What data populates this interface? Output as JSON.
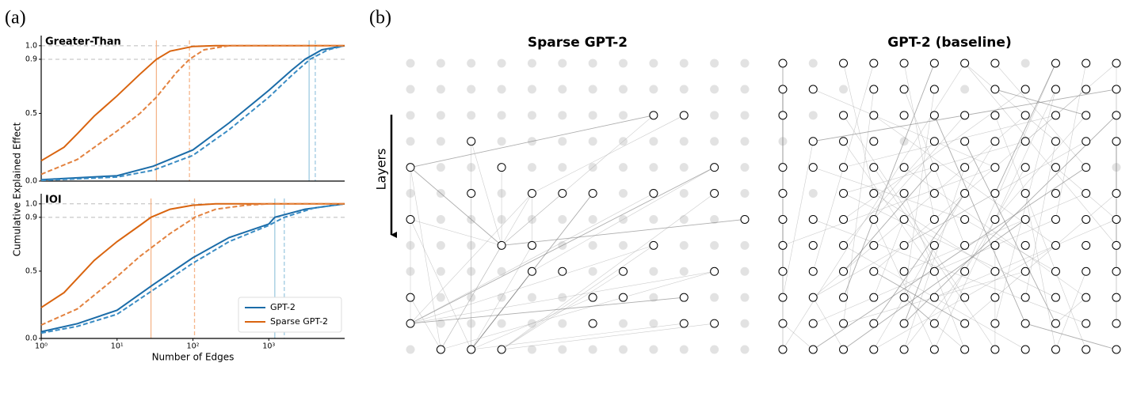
{
  "panel_labels": [
    "(a)",
    "(b)"
  ],
  "chart_data": [
    {
      "type": "line",
      "title": "Greater-Than",
      "xscale": "log",
      "xlim": [
        1,
        10000
      ],
      "ylim": [
        0,
        1.04
      ],
      "yticks": [
        {
          "value": 0,
          "label": "0.0"
        },
        0.5,
        0.9,
        {
          "value": 1,
          "label": "1.0"
        }
      ],
      "reference_lines": [
        0.9,
        1
      ],
      "vlines": [
        {
          "x": 33,
          "color": "#f5b58a",
          "style": "solid"
        },
        {
          "x": 90,
          "color": "#f5b58a",
          "style": "dashed"
        },
        {
          "x": 3400,
          "color": "#9ecae1",
          "style": "solid"
        },
        {
          "x": 4100,
          "color": "#9ecae1",
          "style": "dashed"
        }
      ],
      "series": [
        {
          "color": "#1b6ca8",
          "style": "solid",
          "x": [
            1,
            10,
            30,
            100,
            300,
            1000,
            2000,
            3000,
            5000,
            10000
          ],
          "values": [
            0.01,
            0.04,
            0.11,
            0.23,
            0.43,
            0.67,
            0.82,
            0.9,
            0.97,
            1
          ]
        },
        {
          "color": "#3a8cc4",
          "style": "dashed",
          "x": [
            1,
            10,
            30,
            100,
            300,
            1000,
            2000,
            3500,
            6000,
            10000
          ],
          "values": [
            0.005,
            0.03,
            0.08,
            0.19,
            0.38,
            0.62,
            0.78,
            0.9,
            0.97,
            1
          ]
        },
        {
          "color": "#d9640f",
          "style": "solid",
          "x": [
            1,
            2,
            3,
            5,
            10,
            20,
            33,
            50,
            100,
            200,
            10000
          ],
          "values": [
            0.15,
            0.25,
            0.35,
            0.48,
            0.63,
            0.79,
            0.9,
            0.96,
            0.995,
            1,
            1
          ]
        },
        {
          "color": "#e3823f",
          "style": "dashed",
          "x": [
            1,
            3,
            10,
            20,
            33,
            60,
            90,
            140,
            300,
            10000
          ],
          "values": [
            0.05,
            0.16,
            0.37,
            0.5,
            0.62,
            0.8,
            0.9,
            0.97,
            1,
            1
          ]
        }
      ]
    },
    {
      "type": "line",
      "title": "IOI",
      "xscale": "log",
      "xlim": [
        1,
        10000
      ],
      "ylim": [
        0,
        1.04
      ],
      "xlabel": "Number of Edges",
      "ylabel": "Cumulative Explained Effect",
      "xticks": [
        {
          "value": 1,
          "label": "10⁰"
        },
        {
          "value": 10,
          "label": "10¹"
        },
        {
          "value": 100,
          "label": "10²"
        },
        {
          "value": 1000,
          "label": "10³"
        }
      ],
      "yticks": [
        {
          "value": 0,
          "label": "0.0"
        },
        0.5,
        0.9,
        {
          "value": 1,
          "label": "1.0"
        }
      ],
      "reference_lines": [
        0.9,
        1
      ],
      "legend": "lower right",
      "vlines": [
        {
          "x": 28,
          "color": "#f5b58a",
          "style": "solid"
        },
        {
          "x": 105,
          "color": "#f5b58a",
          "style": "dashed"
        },
        {
          "x": 1200,
          "color": "#9ecae1",
          "style": "solid"
        },
        {
          "x": 1600,
          "color": "#9ecae1",
          "style": "dashed"
        }
      ],
      "series": [
        {
          "name": "GPT-2",
          "color": "#1b6ca8",
          "style": "solid",
          "x": [
            1,
            3,
            10,
            30,
            100,
            300,
            1000,
            1200,
            3000,
            10000
          ],
          "values": [
            0.05,
            0.11,
            0.21,
            0.4,
            0.6,
            0.75,
            0.85,
            0.9,
            0.96,
            1
          ]
        },
        {
          "color": "#3a8cc4",
          "style": "dashed",
          "x": [
            1,
            3,
            10,
            30,
            100,
            300,
            1000,
            1600,
            4000,
            10000
          ],
          "values": [
            0.04,
            0.09,
            0.18,
            0.36,
            0.56,
            0.72,
            0.84,
            0.9,
            0.97,
            1
          ]
        },
        {
          "name": "Sparse GPT-2",
          "color": "#d9640f",
          "style": "solid",
          "x": [
            1,
            2,
            5,
            10,
            20,
            28,
            50,
            100,
            200,
            10000
          ],
          "values": [
            0.23,
            0.34,
            0.58,
            0.72,
            0.84,
            0.9,
            0.96,
            0.99,
            1,
            1
          ]
        },
        {
          "color": "#e3823f",
          "style": "dashed",
          "x": [
            1,
            3,
            10,
            20,
            50,
            100,
            105,
            200,
            500,
            1000,
            10000
          ],
          "values": [
            0.1,
            0.22,
            0.46,
            0.61,
            0.78,
            0.89,
            0.9,
            0.96,
            0.99,
            1,
            1
          ]
        }
      ]
    }
  ],
  "layers_label": "Layers",
  "diagrams": [
    {
      "title": "Sparse GPT-2",
      "layers": 12,
      "nodes_per_layer": 12,
      "active_by_layer": [
        [],
        [],
        [
          8,
          9
        ],
        [
          2
        ],
        [
          0,
          3,
          10
        ],
        [
          2,
          4,
          5,
          6,
          8,
          10
        ],
        [
          0,
          11
        ],
        [
          3,
          4,
          8
        ],
        [
          4,
          5,
          7,
          10
        ],
        [
          0,
          6,
          7,
          9
        ],
        [
          0,
          6,
          9,
          10
        ],
        [
          1,
          2,
          3
        ]
      ],
      "edges": [
        [
          2,
          8,
          4,
          0
        ],
        [
          2,
          8,
          7,
          3
        ],
        [
          2,
          9,
          5,
          4
        ],
        [
          3,
          2,
          7,
          3
        ],
        [
          3,
          2,
          11,
          2
        ],
        [
          4,
          0,
          7,
          3
        ],
        [
          4,
          0,
          10,
          0
        ],
        [
          4,
          0,
          11,
          1
        ],
        [
          4,
          3,
          7,
          3
        ],
        [
          4,
          10,
          8,
          4
        ],
        [
          4,
          10,
          10,
          0
        ],
        [
          5,
          2,
          11,
          2
        ],
        [
          5,
          4,
          7,
          4
        ],
        [
          5,
          4,
          11,
          1
        ],
        [
          5,
          5,
          7,
          3
        ],
        [
          5,
          6,
          11,
          2
        ],
        [
          5,
          8,
          10,
          0
        ],
        [
          5,
          10,
          11,
          3
        ],
        [
          6,
          0,
          7,
          3
        ],
        [
          6,
          0,
          11,
          2
        ],
        [
          6,
          11,
          7,
          3
        ],
        [
          7,
          3,
          11,
          1
        ],
        [
          7,
          4,
          11,
          2
        ],
        [
          7,
          8,
          10,
          0
        ],
        [
          7,
          8,
          11,
          3
        ],
        [
          8,
          4,
          11,
          2
        ],
        [
          8,
          10,
          10,
          0
        ],
        [
          8,
          10,
          11,
          1
        ],
        [
          8,
          7,
          11,
          3
        ],
        [
          9,
          0,
          11,
          1
        ],
        [
          9,
          9,
          10,
          0
        ],
        [
          10,
          9,
          11,
          2
        ],
        [
          10,
          10,
          11,
          3
        ],
        [
          9,
          6,
          11,
          2
        ],
        [
          5,
          4,
          10,
          0
        ]
      ]
    },
    {
      "title": "GPT-2 (baseline)",
      "layers": 12,
      "nodes_per_layer": 12,
      "active_by_layer": [
        [
          0,
          2,
          3,
          4,
          5,
          6,
          7,
          9,
          10,
          11
        ],
        [
          0,
          1,
          3,
          4,
          5,
          7,
          8,
          9,
          10,
          11
        ],
        [
          0,
          2,
          3,
          4,
          5,
          6,
          7,
          8,
          9,
          10,
          11
        ],
        [
          1,
          2,
          3,
          5,
          6,
          7,
          8,
          9,
          10,
          11
        ],
        [
          0,
          1,
          2,
          3,
          4,
          5,
          6,
          7,
          8,
          9,
          10
        ],
        [
          0,
          2,
          3,
          4,
          5,
          6,
          7,
          8,
          9,
          10,
          11
        ],
        [
          0,
          1,
          2,
          3,
          4,
          5,
          6,
          7,
          8,
          9,
          10,
          11
        ],
        [
          0,
          1,
          2,
          3,
          4,
          5,
          6,
          7,
          8,
          9,
          10,
          11
        ],
        [
          0,
          1,
          2,
          3,
          4,
          5,
          6,
          7,
          8,
          9,
          10,
          11
        ],
        [
          0,
          1,
          2,
          3,
          4,
          5,
          6,
          7,
          8,
          9,
          10,
          11
        ],
        [
          0,
          1,
          2,
          3,
          4,
          5,
          6,
          7,
          8,
          9,
          10,
          11
        ],
        [
          0,
          1,
          2,
          3,
          4,
          5,
          6,
          7,
          8,
          9,
          10,
          11
        ]
      ],
      "edges": [
        [
          0,
          0,
          4,
          0
        ],
        [
          0,
          0,
          6,
          0
        ],
        [
          0,
          2,
          5,
          3
        ],
        [
          0,
          3,
          8,
          1
        ],
        [
          0,
          4,
          6,
          5
        ],
        [
          0,
          5,
          9,
          2
        ],
        [
          0,
          6,
          3,
          9
        ],
        [
          0,
          6,
          7,
          11
        ],
        [
          0,
          7,
          4,
          10
        ],
        [
          0,
          9,
          8,
          6
        ],
        [
          0,
          9,
          5,
          7
        ],
        [
          0,
          10,
          6,
          9
        ],
        [
          0,
          11,
          10,
          11
        ],
        [
          0,
          11,
          3,
          8
        ],
        [
          0,
          6,
          11,
          0
        ],
        [
          1,
          0,
          6,
          0
        ],
        [
          1,
          1,
          4,
          7
        ],
        [
          1,
          3,
          10,
          2
        ],
        [
          1,
          4,
          7,
          6
        ],
        [
          1,
          5,
          9,
          4
        ],
        [
          1,
          7,
          2,
          10
        ],
        [
          1,
          8,
          6,
          2
        ],
        [
          1,
          9,
          10,
          7
        ],
        [
          1,
          10,
          8,
          3
        ],
        [
          1,
          11,
          5,
          11
        ],
        [
          1,
          11,
          3,
          1
        ],
        [
          1,
          9,
          11,
          5
        ],
        [
          2,
          0,
          8,
          0
        ],
        [
          2,
          2,
          9,
          6
        ],
        [
          2,
          3,
          7,
          9
        ],
        [
          2,
          5,
          10,
          8
        ],
        [
          2,
          6,
          6,
          3
        ],
        [
          2,
          7,
          11,
          10
        ],
        [
          2,
          8,
          9,
          1
        ],
        [
          2,
          10,
          6,
          7
        ],
        [
          2,
          11,
          10,
          4
        ],
        [
          2,
          9,
          4,
          2
        ],
        [
          3,
          1,
          9,
          0
        ],
        [
          3,
          2,
          8,
          5
        ],
        [
          3,
          5,
          7,
          2
        ],
        [
          3,
          6,
          10,
          9
        ],
        [
          3,
          7,
          11,
          3
        ],
        [
          3,
          8,
          5,
          2
        ],
        [
          3,
          9,
          9,
          8
        ],
        [
          3,
          10,
          7,
          4
        ],
        [
          3,
          11,
          8,
          11
        ],
        [
          4,
          0,
          10,
          0
        ],
        [
          4,
          1,
          6,
          6
        ],
        [
          4,
          3,
          11,
          7
        ],
        [
          4,
          4,
          9,
          10
        ],
        [
          4,
          5,
          8,
          2
        ],
        [
          4,
          6,
          11,
          4
        ],
        [
          4,
          7,
          7,
          0
        ],
        [
          4,
          8,
          10,
          5
        ],
        [
          4,
          9,
          6,
          11
        ],
        [
          4,
          10,
          11,
          1
        ],
        [
          5,
          0,
          11,
          0
        ],
        [
          5,
          2,
          9,
          9
        ],
        [
          5,
          3,
          8,
          7
        ],
        [
          5,
          4,
          11,
          6
        ],
        [
          5,
          6,
          10,
          3
        ],
        [
          5,
          7,
          9,
          1
        ],
        [
          5,
          8,
          11,
          9
        ],
        [
          5,
          10,
          8,
          4
        ],
        [
          5,
          11,
          10,
          6
        ],
        [
          6,
          0,
          8,
          0
        ],
        [
          6,
          1,
          10,
          10
        ],
        [
          6,
          3,
          11,
          5
        ],
        [
          6,
          4,
          9,
          3
        ],
        [
          6,
          6,
          8,
          9
        ],
        [
          6,
          8,
          11,
          2
        ],
        [
          6,
          9,
          10,
          1
        ],
        [
          6,
          11,
          9,
          5
        ],
        [
          7,
          0,
          9,
          0
        ],
        [
          7,
          2,
          11,
          8
        ],
        [
          7,
          5,
          10,
          4
        ],
        [
          7,
          7,
          9,
          7
        ],
        [
          7,
          9,
          11,
          3
        ],
        [
          7,
          11,
          10,
          11
        ],
        [
          8,
          0,
          11,
          0
        ],
        [
          8,
          3,
          10,
          6
        ],
        [
          8,
          6,
          11,
          4
        ],
        [
          8,
          8,
          10,
          2
        ],
        [
          8,
          10,
          11,
          9
        ],
        [
          9,
          1,
          11,
          2
        ],
        [
          9,
          4,
          10,
          5
        ],
        [
          9,
          7,
          11,
          7
        ],
        [
          9,
          10,
          10,
          9
        ],
        [
          10,
          0,
          11,
          1
        ],
        [
          10,
          5,
          11,
          6
        ],
        [
          10,
          8,
          11,
          11
        ]
      ]
    }
  ]
}
